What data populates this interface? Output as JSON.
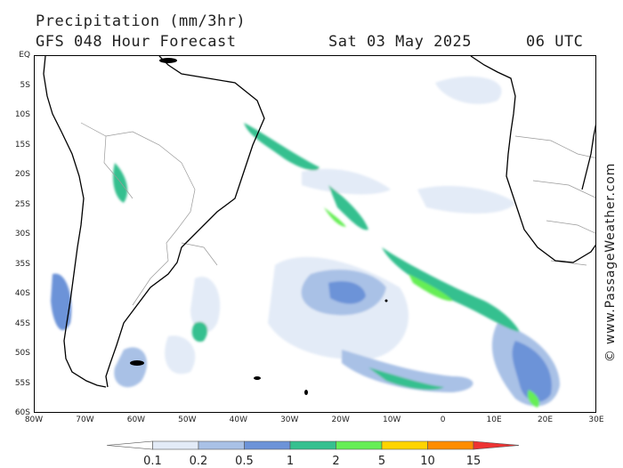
{
  "header": {
    "title": "Precipitation (mm/3hr)",
    "subtitle": "GFS 048 Hour Forecast",
    "valid_date": "Sat 03 May 2025",
    "valid_time": "06 UTC"
  },
  "map": {
    "lat_labels": [
      "EQ",
      "5S",
      "10S",
      "15S",
      "20S",
      "25S",
      "30S",
      "35S",
      "40S",
      "45S",
      "50S",
      "55S",
      "60S"
    ],
    "lon_labels": [
      "80W",
      "70W",
      "60W",
      "50W",
      "40W",
      "30W",
      "20W",
      "10W",
      "0",
      "10E",
      "20E",
      "30E"
    ],
    "land_color": "#ffffff",
    "coast_color": "#000000",
    "border_color": "#9a9a9a"
  },
  "watermark": "© www.PassageWeather.com",
  "legend": {
    "labels": [
      "0.1",
      "0.2",
      "0.5",
      "1",
      "2",
      "5",
      "10",
      "15"
    ],
    "colors": [
      "#ffffff",
      "#e3ebf7",
      "#a9c1e6",
      "#6c93d8",
      "#35c08f",
      "#66ee55",
      "#ffd400",
      "#ff8c00",
      "#ee3333"
    ]
  }
}
